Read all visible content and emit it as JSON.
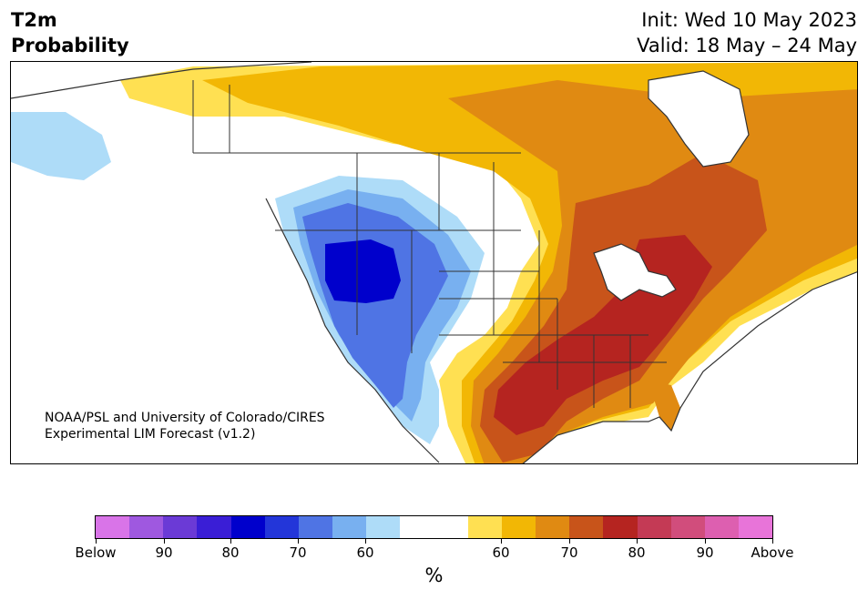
{
  "header": {
    "title_line1": "T2m",
    "title_line2": "Probability",
    "init": "Init: Wed 10 May 2023",
    "valid": "Valid: 18 May – 24 May"
  },
  "credit": {
    "line1": "NOAA/PSL and University of Colorado/CIRES",
    "line2": "Experimental LIM Forecast (v1.2)"
  },
  "colorbar": {
    "colors": [
      "#d974e8",
      "#9f58e0",
      "#6b3ad6",
      "#3a1ed6",
      "#0000cc",
      "#2336d9",
      "#4f74e4",
      "#78b0f0",
      "#aedcf8",
      "#ffffff",
      "#ffffff",
      "#ffe052",
      "#f2b705",
      "#e08a12",
      "#c8541a",
      "#b52420",
      "#c43a55",
      "#d14d7c",
      "#dd5fb0",
      "#e874d9"
    ],
    "tick_labels": [
      "Below",
      "90",
      "80",
      "70",
      "60",
      "60",
      "70",
      "80",
      "90",
      "Above"
    ],
    "unit": "%"
  },
  "map": {
    "region": "North America",
    "colors": {
      "ocean": "#ffffff",
      "light_blue": "#aedcf8",
      "mid_blue": "#78b0f0",
      "blue": "#4f74e4",
      "deep_blue": "#0000cc",
      "yellow": "#ffe052",
      "gold": "#f2b705",
      "orange": "#e08a12",
      "dark_orange": "#c8541a",
      "red": "#b52420",
      "border": "#333333"
    }
  }
}
